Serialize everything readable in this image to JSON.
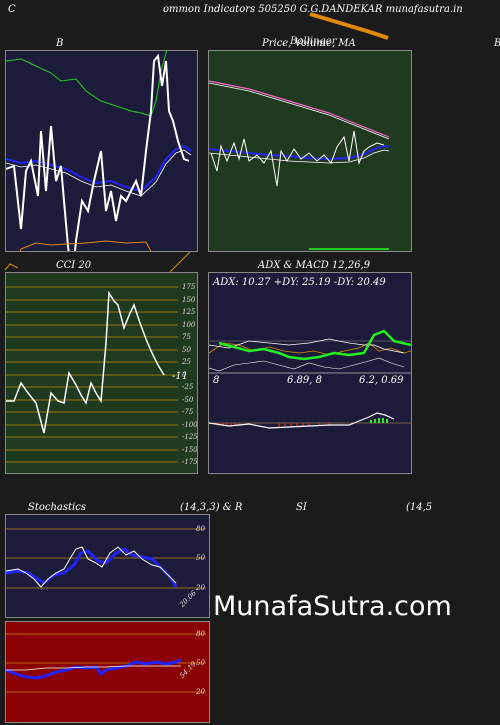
{
  "header": {
    "left_letter": "C",
    "title": "ommon  Indicators 505250  G.G.DANDEKAR munafasutra.in"
  },
  "panels": {
    "bollinger": {
      "label": "B"
    },
    "price": {
      "label": "Price,  Volume,  MA",
      "label_overlap": "Bollinger",
      "edge_letter": "B"
    },
    "cci": {
      "label": "CCI 20",
      "ticks": [
        "175",
        "150",
        "125",
        "100",
        "75",
        "50",
        "25",
        "0",
        "-25",
        "-50",
        "-75",
        "-100",
        "-125",
        "-150",
        "-175"
      ],
      "last_value": "-11"
    },
    "adx": {
      "label": "ADX  & MACD 12,26,9",
      "values": "ADX: 10.27  +DY: 25.19 -DY: 20.49",
      "macd_left": "8",
      "macd_mid": "6.89,  8",
      "macd_right": "6.2,  0.69"
    },
    "stochastics": {
      "label": "Stochastics",
      "params": "(14,3,3) & R",
      "ticks": [
        "80",
        "50",
        "20"
      ],
      "last_value": "20.06"
    },
    "rsi": {
      "label": "SI",
      "params": "(14,5",
      "ticks": [
        "80",
        "50",
        "20"
      ],
      "last_value": "54.19"
    }
  },
  "watermark": "MunafaSutra.com",
  "colors": {
    "page_bg": "#1b1b1b",
    "navy_panel": "#1c1c3a",
    "green_panel": "#1f3a1f",
    "red_panel": "#8b0000",
    "white_line": "#ffffff",
    "blue_line": "#2222ff",
    "green_line": "#22cc22",
    "orange_line": "#e08a00"
  }
}
